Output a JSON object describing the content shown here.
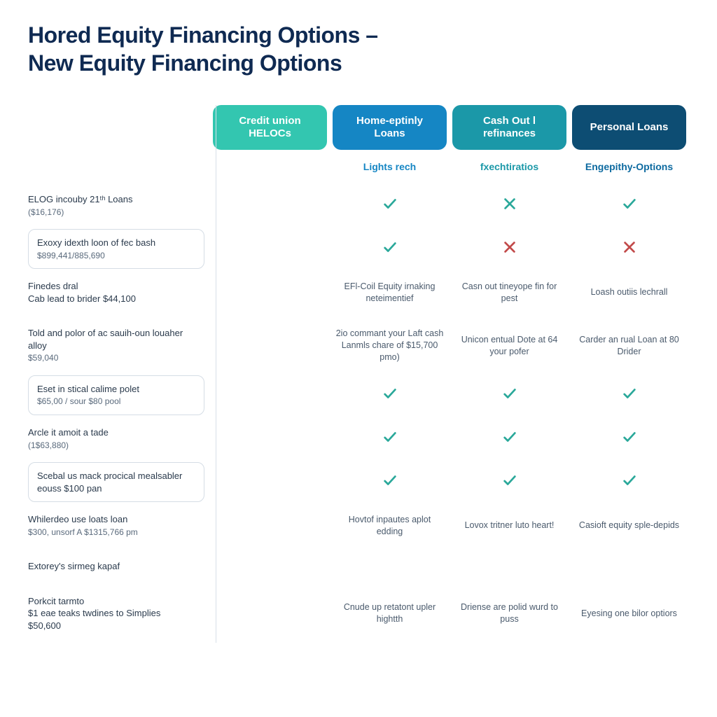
{
  "colors": {
    "title": "#0f2a52",
    "header1_bg": "#33c6b0",
    "header2_bg": "#1586c4",
    "header3_bg": "#1b98a8",
    "header4_bg": "#0d4d73",
    "sub1": "#1073b0",
    "sub2": "#1586c4",
    "sub3": "#1b98a8",
    "sub4": "#0d6aa0",
    "check": "#2aa89a",
    "cross_teal": "#2aa89a",
    "cross_red": "#c24a4a",
    "text": "#3a4a5c",
    "subtext": "#5a6a7c",
    "divider": "#d8e0e8",
    "box_border": "#d5dde5",
    "background": "#ffffff"
  },
  "title_line1": "Hored Equity Financing Options –",
  "title_line2": "New Equity Financing Options",
  "columns": [
    {
      "label": "Credit union HELOCs",
      "sub": ""
    },
    {
      "label": "Home-eptinly Loans",
      "sub": "Lights rech"
    },
    {
      "label": "Cash Out l refinances",
      "sub": "fxechtiratios"
    },
    {
      "label": "Personal Loans",
      "sub": "Engepithy-Options"
    }
  ],
  "rows": [
    {
      "label": "ELOG incouby 21ᵗʰ Loans",
      "sublabel": "($16,176)",
      "boxed": false,
      "cells": [
        {
          "mark": "check"
        },
        {
          "mark": "cross-teal"
        },
        {
          "mark": "check"
        }
      ]
    },
    {
      "label": "Exoxy idexth loon of fec bash",
      "sublabel": "$899,441/885,690",
      "boxed": true,
      "cells": [
        {
          "mark": "check"
        },
        {
          "mark": "cross-red"
        },
        {
          "mark": "cross-red"
        }
      ]
    },
    {
      "label": "Finedes dral\nCab lead to brider  $44,100",
      "sublabel": "",
      "boxed": false,
      "cells": [
        {
          "text": "EFl-Coil Equity irnaking neteimentief"
        },
        {
          "text": "Casn out tineyope fin for pest"
        },
        {
          "text": "Loash outiis lechrall"
        }
      ]
    },
    {
      "label": "Told and polor of ac sauih-oun louaher alloy",
      "sublabel": "$59,040",
      "boxed": false,
      "cells": [
        {
          "text": "2io commant your Laft cash Lanmls chare of $15,700 pmo)"
        },
        {
          "text": "Unicon entual Dote at 64 your pofer"
        },
        {
          "text": "Carder an rual Loan at 80 Drider"
        }
      ]
    },
    {
      "label": "Eset in stical calime polet",
      "sublabel": "$65,00 / sour  $80 pool",
      "boxed": true,
      "cells": [
        {
          "mark": "check"
        },
        {
          "mark": "check"
        },
        {
          "mark": "check"
        }
      ]
    },
    {
      "label": "Arcle it amoit a tade",
      "sublabel": "(1$63,880)",
      "boxed": false,
      "cells": [
        {
          "mark": "check"
        },
        {
          "mark": "check"
        },
        {
          "mark": "check"
        }
      ]
    },
    {
      "label": "Scebal us mack procical mealsabler eouss $100 pan",
      "sublabel": "",
      "boxed": true,
      "cells": [
        {
          "mark": "check"
        },
        {
          "mark": "check"
        },
        {
          "mark": "check"
        }
      ]
    },
    {
      "label": "Whilerdeo use loats loan",
      "sublabel": "$300, unsorf A $1315,766 pm",
      "boxed": false,
      "cells": [
        {
          "text": "Hovtof inpautes aplot edding"
        },
        {
          "text": "Lovox tritner luto heart!"
        },
        {
          "text": "Casioft equity sple-depids"
        }
      ]
    },
    {
      "label": "Extorey's sirmeg kapaf",
      "sublabel": "",
      "boxed": false,
      "cells": [
        {
          "text": ""
        },
        {
          "text": ""
        },
        {
          "text": ""
        }
      ]
    },
    {
      "label": "Porkcit tarmto\n$1 eae teaks twdines to Simplies\n$50,600",
      "sublabel": "",
      "boxed": false,
      "cells": [
        {
          "text": "Cnude up retatont upler hightth"
        },
        {
          "text": "Driense are polid wurd to puss"
        },
        {
          "text": "Eyesing one bilor optiors"
        }
      ]
    }
  ]
}
